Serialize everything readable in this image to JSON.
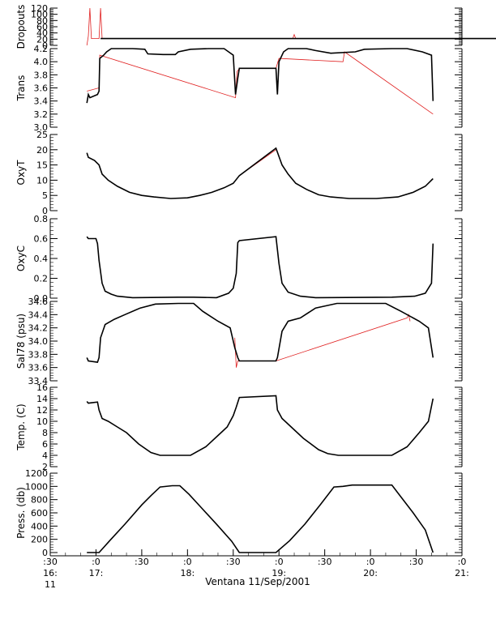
{
  "chart_data": {
    "type": "line",
    "xlabel": "Ventana 11/Sep/2001",
    "x_ticks": [
      {
        "t": 0,
        "l1": ":30",
        "l2": "16:",
        "l3": "11"
      },
      {
        "t": 30,
        "l1": ":0",
        "l2": "17:",
        "l3": ""
      },
      {
        "t": 60,
        "l1": ":30",
        "l2": "",
        "l3": ""
      },
      {
        "t": 90,
        "l1": ":0",
        "l2": "18:",
        "l3": ""
      },
      {
        "t": 120,
        "l1": ":30",
        "l2": "",
        "l3": ""
      },
      {
        "t": 150,
        "l1": ":0",
        "l2": "19:",
        "l3": ""
      },
      {
        "t": 180,
        "l1": ":30",
        "l2": "",
        "l3": ""
      },
      {
        "t": 210,
        "l1": ":0",
        "l2": "20:",
        "l3": ""
      },
      {
        "t": 240,
        "l1": ":30",
        "l2": "",
        "l3": ""
      },
      {
        "t": 270,
        "l1": ":0",
        "l2": "21:",
        "l3": ""
      }
    ],
    "xlim": [
      0,
      270
    ],
    "panels": [
      {
        "ylabel": "Dropouts",
        "ylim": [
          0,
          120
        ],
        "ticks": [
          "0",
          "20",
          "40",
          "60",
          "80",
          "100",
          "120"
        ],
        "tick_values": [
          0,
          20,
          40,
          60,
          80,
          100,
          120
        ],
        "series": {
          "black": [
            [
              9,
              22
            ],
            [
              20,
              22
            ],
            [
              40,
              22
            ],
            [
              60,
              22
            ],
            [
              80,
              22
            ],
            [
              100,
              22
            ],
            [
              120,
              22
            ],
            [
              140,
              22
            ],
            [
              160,
              22
            ],
            [
              180,
              22
            ],
            [
              200,
              22
            ],
            [
              220,
              22
            ],
            [
              240,
              22
            ],
            [
              270,
              22
            ]
          ],
          "red": [
            [
              0,
              0
            ],
            [
              1,
              30
            ],
            [
              2,
              130
            ],
            [
              3,
              22
            ],
            [
              8,
              22
            ],
            [
              9,
              130
            ],
            [
              10,
              22
            ],
            [
              135,
              22
            ],
            [
              136,
              35
            ],
            [
              137,
              22
            ],
            [
              270,
              22
            ]
          ]
        }
      },
      {
        "ylabel": "Trans",
        "ylim": [
          3.0,
          4.2
        ],
        "ticks": [
          "3.0",
          "3.2",
          "3.4",
          "3.6",
          "3.8",
          "4.0",
          "4.2"
        ],
        "tick_values": [
          3.0,
          3.2,
          3.4,
          3.6,
          3.8,
          4.0,
          4.2
        ],
        "series": {
          "black": [
            [
              0,
              3.37
            ],
            [
              1,
              3.5
            ],
            [
              2,
              3.45
            ],
            [
              7,
              3.5
            ],
            [
              8,
              3.55
            ],
            [
              8.5,
              4.05
            ],
            [
              11,
              4.1
            ],
            [
              13,
              4.15
            ],
            [
              16,
              4.2
            ],
            [
              30,
              4.2
            ],
            [
              38,
              4.19
            ],
            [
              40,
              4.12
            ],
            [
              50,
              4.11
            ],
            [
              58,
              4.11
            ],
            [
              60,
              4.15
            ],
            [
              68,
              4.19
            ],
            [
              80,
              4.2
            ],
            [
              90,
              4.2
            ],
            [
              93,
              4.15
            ],
            [
              96,
              4.1
            ],
            [
              97.5,
              3.5
            ],
            [
              99,
              3.75
            ],
            [
              100,
              3.9
            ],
            [
              124,
              3.9
            ],
            [
              125,
              3.5
            ],
            [
              126,
              4.0
            ],
            [
              129,
              4.15
            ],
            [
              132,
              4.2
            ],
            [
              144,
              4.2
            ],
            [
              150,
              4.17
            ],
            [
              160,
              4.13
            ],
            [
              176,
              4.15
            ],
            [
              182,
              4.19
            ],
            [
              200,
              4.2
            ],
            [
              210,
              4.2
            ],
            [
              220,
              4.15
            ],
            [
              226,
              4.1
            ],
            [
              227,
              3.4
            ]
          ],
          "red": [
            [
              0,
              3.55
            ],
            [
              8,
              3.6
            ],
            [
              8.5,
              4.1
            ],
            [
              97.5,
              3.45
            ],
            [
              98.5,
              3.85
            ],
            [
              99.5,
              3.88
            ],
            [
              100,
              3.9
            ],
            [
              124,
              3.9
            ],
            [
              126,
              4.05
            ],
            [
              168,
              4.0
            ],
            [
              169,
              4.15
            ],
            [
              227,
              3.2
            ]
          ]
        }
      },
      {
        "ylabel": "OxyT",
        "ylim": [
          0,
          25
        ],
        "ticks": [
          "0",
          "5",
          "10",
          "15",
          "20",
          "25"
        ],
        "tick_values": [
          0,
          5,
          10,
          15,
          20,
          25
        ],
        "series": {
          "black": [
            [
              0,
              19
            ],
            [
              1,
              17.5
            ],
            [
              5,
              16.5
            ],
            [
              8,
              15
            ],
            [
              10,
              12
            ],
            [
              14,
              10
            ],
            [
              20,
              8
            ],
            [
              28,
              6
            ],
            [
              36,
              5
            ],
            [
              44,
              4.5
            ],
            [
              55,
              4
            ],
            [
              66,
              4.2
            ],
            [
              74,
              5
            ],
            [
              82,
              6
            ],
            [
              90,
              7.5
            ],
            [
              96,
              9
            ],
            [
              100,
              11.5
            ],
            [
              124,
              20.5
            ],
            [
              128,
              15
            ],
            [
              132,
              12
            ],
            [
              137,
              9
            ],
            [
              144,
              7
            ],
            [
              152,
              5.2
            ],
            [
              160,
              4.5
            ],
            [
              172,
              4
            ],
            [
              190,
              4
            ],
            [
              204,
              4.5
            ],
            [
              214,
              6
            ],
            [
              222,
              8
            ],
            [
              227,
              10.5
            ]
          ],
          "red": [
            [
              100,
              11.5
            ],
            [
              124,
              20
            ]
          ]
        }
      },
      {
        "ylabel": "OxyC",
        "ylim": [
          0,
          0.8
        ],
        "ticks": [
          "0.0",
          "0.2",
          "0.4",
          "0.6",
          "0.8"
        ],
        "tick_values": [
          0.0,
          0.2,
          0.4,
          0.6,
          0.8
        ],
        "series": {
          "black": [
            [
              0,
              0.62
            ],
            [
              1,
              0.6
            ],
            [
              6,
              0.6
            ],
            [
              7,
              0.55
            ],
            [
              8,
              0.38
            ],
            [
              10,
              0.15
            ],
            [
              12,
              0.07
            ],
            [
              16,
              0.04
            ],
            [
              20,
              0.02
            ],
            [
              30,
              0.005
            ],
            [
              60,
              0.01
            ],
            [
              70,
              0.01
            ],
            [
              85,
              0.005
            ],
            [
              93,
              0.05
            ],
            [
              96,
              0.1
            ],
            [
              98,
              0.25
            ],
            [
              99,
              0.56
            ],
            [
              100,
              0.58
            ],
            [
              124,
              0.62
            ],
            [
              126,
              0.35
            ],
            [
              128,
              0.15
            ],
            [
              132,
              0.06
            ],
            [
              140,
              0.02
            ],
            [
              150,
              0.005
            ],
            [
              200,
              0.01
            ],
            [
              215,
              0.02
            ],
            [
              222,
              0.05
            ],
            [
              226,
              0.15
            ],
            [
              227,
              0.55
            ]
          ],
          "red": [
            [
              100,
              0.58
            ],
            [
              124,
              0.62
            ]
          ]
        }
      },
      {
        "ylabel": "Sal78 (psu)",
        "ylim": [
          33.4,
          34.6
        ],
        "ticks": [
          "33.4",
          "33.6",
          "33.8",
          "34.0",
          "34.2",
          "34.4",
          "34.6"
        ],
        "tick_values": [
          33.4,
          33.6,
          33.8,
          34.0,
          34.2,
          34.4,
          34.6
        ],
        "series": {
          "black": [
            [
              0,
              33.75
            ],
            [
              1,
              33.7
            ],
            [
              7,
              33.68
            ],
            [
              8,
              33.75
            ],
            [
              9,
              34.05
            ],
            [
              12,
              34.25
            ],
            [
              18,
              34.33
            ],
            [
              25,
              34.4
            ],
            [
              35,
              34.5
            ],
            [
              45,
              34.56
            ],
            [
              60,
              34.57
            ],
            [
              70,
              34.57
            ],
            [
              76,
              34.45
            ],
            [
              86,
              34.3
            ],
            [
              94,
              34.2
            ],
            [
              97,
              33.9
            ],
            [
              99,
              33.75
            ],
            [
              100,
              33.7
            ],
            [
              124,
              33.7
            ],
            [
              125,
              33.75
            ],
            [
              128,
              34.15
            ],
            [
              132,
              34.3
            ],
            [
              140,
              34.35
            ],
            [
              150,
              34.5
            ],
            [
              164,
              34.57
            ],
            [
              196,
              34.57
            ],
            [
              206,
              34.45
            ],
            [
              218,
              34.3
            ],
            [
              224,
              34.2
            ],
            [
              227,
              33.75
            ]
          ],
          "red": [
            [
              97,
              34.05
            ],
            [
              98,
              33.6
            ],
            [
              99,
              33.7
            ],
            [
              124,
              33.7
            ],
            [
              210,
              34.35
            ],
            [
              211,
              34.4
            ],
            [
              212,
              34.3
            ]
          ]
        }
      },
      {
        "ylabel": "Temp. (C)",
        "ylim": [
          2,
          16
        ],
        "ticks": [
          "2",
          "4",
          "6",
          "8",
          "10",
          "12",
          "14",
          "16"
        ],
        "tick_values": [
          2,
          4,
          6,
          8,
          10,
          12,
          14,
          16
        ],
        "series": {
          "black": [
            [
              0,
              13.5
            ],
            [
              1,
              13.2
            ],
            [
              7,
              13.4
            ],
            [
              8,
              12
            ],
            [
              10,
              10.5
            ],
            [
              14,
              10
            ],
            [
              20,
              9
            ],
            [
              26,
              8
            ],
            [
              34,
              6
            ],
            [
              42,
              4.5
            ],
            [
              48,
              4
            ],
            [
              68,
              4
            ],
            [
              78,
              5.5
            ],
            [
              86,
              7.5
            ],
            [
              92,
              9
            ],
            [
              96,
              11
            ],
            [
              98,
              12.5
            ],
            [
              100,
              14.2
            ],
            [
              124,
              14.5
            ],
            [
              125,
              12
            ],
            [
              128,
              10.5
            ],
            [
              134,
              9
            ],
            [
              142,
              7
            ],
            [
              152,
              5
            ],
            [
              158,
              4.3
            ],
            [
              165,
              4
            ],
            [
              200,
              4
            ],
            [
              210,
              5.5
            ],
            [
              218,
              8
            ],
            [
              224,
              10
            ],
            [
              227,
              14
            ]
          ],
          "red": [
            [
              100,
              14.2
            ],
            [
              124,
              14.5
            ]
          ]
        }
      },
      {
        "ylabel": "Press. (db)",
        "ylim": [
          0,
          1200
        ],
        "ticks": [
          "0",
          "200",
          "400",
          "600",
          "800",
          "1000",
          "1200"
        ],
        "tick_values": [
          0,
          200,
          400,
          600,
          800,
          1000,
          1200
        ],
        "series": {
          "black": [
            [
              0,
              0
            ],
            [
              8,
              0
            ],
            [
              15,
              180
            ],
            [
              25,
              430
            ],
            [
              36,
              720
            ],
            [
              42,
              860
            ],
            [
              48,
              990
            ],
            [
              56,
              1010
            ],
            [
              61,
              1010
            ],
            [
              67,
              880
            ],
            [
              75,
              680
            ],
            [
              85,
              430
            ],
            [
              95,
              170
            ],
            [
              100,
              0
            ],
            [
              124,
              0
            ],
            [
              133,
              180
            ],
            [
              143,
              430
            ],
            [
              153,
              720
            ],
            [
              162,
              990
            ],
            [
              168,
              1000
            ],
            [
              174,
              1020
            ],
            [
              200,
              1020
            ],
            [
              204,
              900
            ],
            [
              214,
              600
            ],
            [
              222,
              340
            ],
            [
              227,
              0
            ]
          ],
          "red": []
        }
      }
    ]
  }
}
